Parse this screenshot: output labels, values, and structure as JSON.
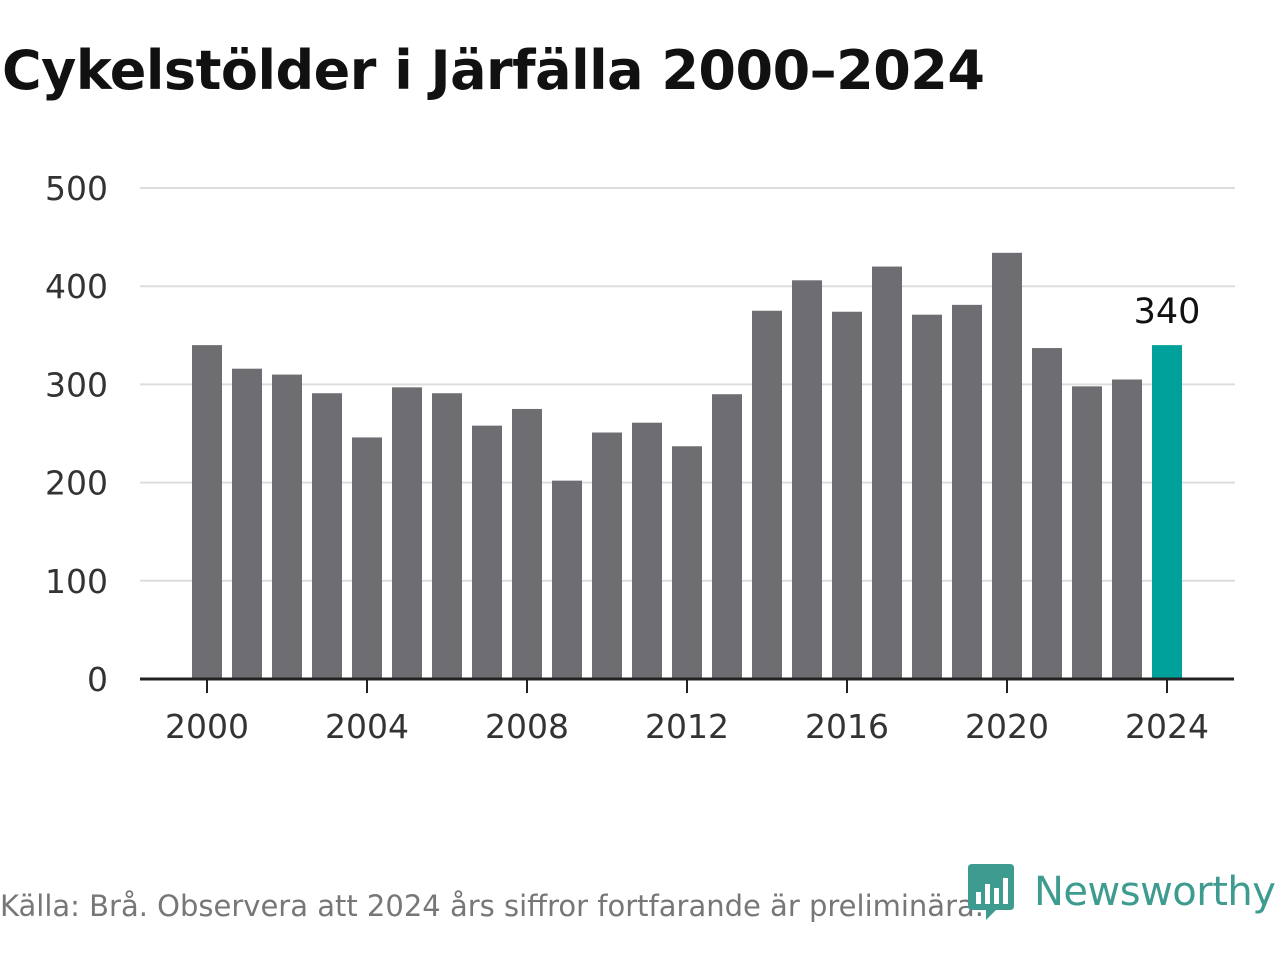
{
  "title": "Cykelstölder i Järfälla 2000–2024",
  "source": "Källa: Brå. Observera att 2024 års siffror fortfarande är preliminära.",
  "logo": {
    "text": "Newsworthy",
    "icon": "newsworthy-logo-icon",
    "color": "#3d9b8f"
  },
  "colors": {
    "bar": "#6e6d72",
    "highlight": "#00a19a",
    "grid": "#dddddd",
    "axis": "#222222"
  },
  "chart_data": {
    "type": "bar",
    "title": "Cykelstölder i Järfälla 2000–2024",
    "xlabel": "",
    "ylabel": "",
    "categories": [
      "2000",
      "2001",
      "2002",
      "2003",
      "2004",
      "2005",
      "2006",
      "2007",
      "2008",
      "2009",
      "2010",
      "2011",
      "2012",
      "2013",
      "2014",
      "2015",
      "2016",
      "2017",
      "2018",
      "2019",
      "2020",
      "2021",
      "2022",
      "2023",
      "2024"
    ],
    "values": [
      340,
      316,
      310,
      291,
      246,
      297,
      291,
      258,
      275,
      202,
      251,
      261,
      237,
      290,
      375,
      406,
      374,
      420,
      371,
      381,
      434,
      337,
      298,
      305,
      340
    ],
    "x_tick_labels": [
      "2000",
      "2004",
      "2008",
      "2012",
      "2016",
      "2020",
      "2024"
    ],
    "y_ticks": [
      0,
      100,
      200,
      300,
      400,
      500
    ],
    "ylim": [
      0,
      500
    ],
    "grid": true,
    "legend": "none",
    "highlight": {
      "category": "2024",
      "label": "340"
    }
  }
}
